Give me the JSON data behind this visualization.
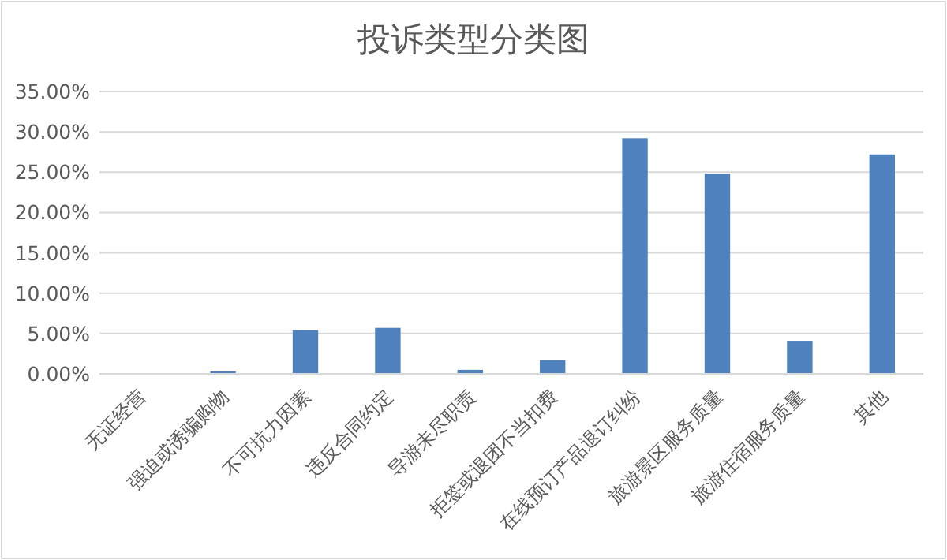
{
  "chart_data": {
    "type": "bar",
    "title": "投诉类型分类图",
    "categories": [
      "无证经营",
      "强迫或诱骗购物",
      "不可抗力因素",
      "违反合同约定",
      "导游未尽职责",
      "拒签或退团不当扣费",
      "在线预订产品退订纠纷",
      "旅游景区服务质量",
      "旅游住宿服务质量",
      "其他"
    ],
    "values": [
      0,
      0.3,
      5.4,
      5.7,
      0.5,
      1.7,
      29.2,
      24.8,
      4.1,
      27.2
    ],
    "color": "#4f81bd",
    "ylim": [
      0,
      35
    ],
    "yticks": [
      {
        "value": 0,
        "label": "0.00%"
      },
      {
        "value": 5,
        "label": "5.00%"
      },
      {
        "value": 10,
        "label": "10.00%"
      },
      {
        "value": 15,
        "label": "15.00%"
      },
      {
        "value": 20,
        "label": "20.00%"
      },
      {
        "value": 25,
        "label": "25.00%"
      },
      {
        "value": 30,
        "label": "30.00%"
      },
      {
        "value": 35,
        "label": "35.00%"
      }
    ],
    "grid": "y"
  }
}
